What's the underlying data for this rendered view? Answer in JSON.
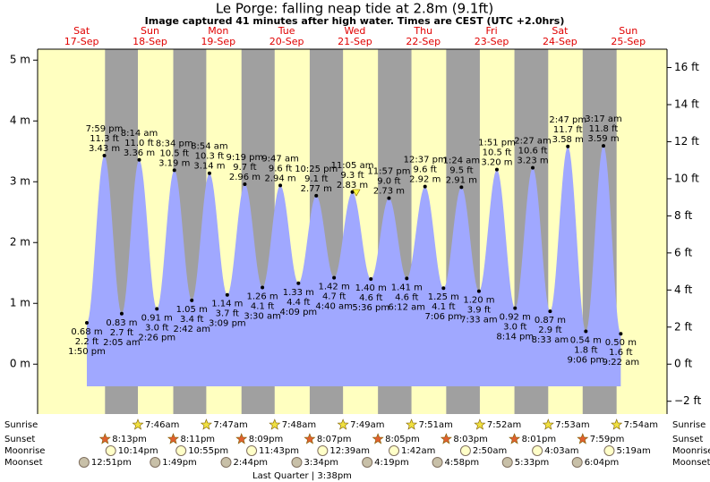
{
  "header": {
    "title": "Le Porge: falling  neap tide at 2.8m (9.1ft)",
    "subtitle": "Image captured 41 minutes after high water. Times are CEST (UTC +2.0hrs)"
  },
  "chart_data": {
    "type": "tide",
    "ylim": [
      -0.82,
      5.18
    ],
    "yticks": [
      {
        "value": 0,
        "label": "0 m"
      },
      {
        "value": 1,
        "label": "1 m"
      },
      {
        "value": 2,
        "label": "2 m"
      },
      {
        "value": 3,
        "label": "3 m"
      },
      {
        "value": 4,
        "label": "4 m"
      },
      {
        "value": 5,
        "label": "5 m"
      }
    ],
    "y2lim": [
      -2.69,
      16.99
    ],
    "y2ticks": [
      {
        "value": -2,
        "label": "−2 ft"
      },
      {
        "value": 0,
        "label": "0 ft"
      },
      {
        "value": 2,
        "label": "2 ft"
      },
      {
        "value": 4,
        "label": "4 ft"
      },
      {
        "value": 6,
        "label": "6 ft"
      },
      {
        "value": 8,
        "label": "8 ft"
      },
      {
        "value": 10,
        "label": "10 ft"
      },
      {
        "value": 12,
        "label": "12 ft"
      },
      {
        "value": 14,
        "label": "14 ft"
      },
      {
        "value": 16,
        "label": "16 ft"
      }
    ],
    "colors": {
      "day": "#ffffc0",
      "night": "#a0a0a0",
      "water": "#a0a8ff",
      "date": "#e00000"
    },
    "row_labels": {
      "sunrise": "Sunrise",
      "sunset": "Sunset",
      "moonrise": "Moonrise",
      "moonset": "Moonset"
    },
    "moon_phase": "Last Quarter | 3:38pm",
    "days": [
      {
        "weekday": "Sat",
        "date": "17-Sep",
        "sunrise": null,
        "sunset": "8:13pm",
        "moonrise": "10:14pm",
        "moonset": "12:51pm",
        "tides": [
          {
            "time": "1:50 pm",
            "value": 0.68,
            "value_label": "0.68 m",
            "ft": "2.2 ft"
          },
          {
            "time": "7:59 pm",
            "value": 3.43,
            "value_label": "3.43 m",
            "ft": "11.3 ft"
          }
        ]
      },
      {
        "weekday": "Sun",
        "date": "18-Sep",
        "sunrise": "7:46am",
        "sunset": "8:11pm",
        "moonrise": "10:55pm",
        "moonset": "1:49pm",
        "tides": [
          {
            "time": "2:05 am",
            "value": 0.83,
            "value_label": "0.83 m",
            "ft": "2.7 ft"
          },
          {
            "time": "8:14 am",
            "value": 3.36,
            "value_label": "3.36 m",
            "ft": "11.0 ft"
          },
          {
            "time": "2:26 pm",
            "value": 0.91,
            "value_label": "0.91 m",
            "ft": "3.0 ft"
          },
          {
            "time": "8:34 pm",
            "value": 3.19,
            "value_label": "3.19 m",
            "ft": "10.5 ft"
          }
        ]
      },
      {
        "weekday": "Mon",
        "date": "19-Sep",
        "sunrise": "7:47am",
        "sunset": "8:09pm",
        "moonrise": "11:43pm",
        "moonset": "2:44pm",
        "tides": [
          {
            "time": "2:42 am",
            "value": 1.05,
            "value_label": "1.05 m",
            "ft": "3.4 ft"
          },
          {
            "time": "8:54 am",
            "value": 3.14,
            "value_label": "3.14 m",
            "ft": "10.3 ft"
          },
          {
            "time": "3:09 pm",
            "value": 1.14,
            "value_label": "1.14 m",
            "ft": "3.7 ft"
          },
          {
            "time": "9:19 pm",
            "value": 2.96,
            "value_label": "2.96 m",
            "ft": "9.7 ft"
          }
        ]
      },
      {
        "weekday": "Tue",
        "date": "20-Sep",
        "sunrise": "7:48am",
        "sunset": "8:07pm",
        "moonrise": null,
        "moonset": "3:34pm",
        "tides": [
          {
            "time": "3:30 am",
            "value": 1.26,
            "value_label": "1.26 m",
            "ft": "4.1 ft"
          },
          {
            "time": "9:47 am",
            "value": 2.94,
            "value_label": "2.94 m",
            "ft": "9.6 ft"
          },
          {
            "time": "4:09 pm",
            "value": 1.33,
            "value_label": "1.33 m",
            "ft": "4.4 ft"
          },
          {
            "time": "10:25 pm",
            "value": 2.77,
            "value_label": "2.77 m",
            "ft": "9.1 ft"
          }
        ]
      },
      {
        "weekday": "Wed",
        "date": "21-Sep",
        "sunrise": "7:49am",
        "sunset": "8:05pm",
        "moonrise": "12:39am",
        "moonset": "4:19pm",
        "tides": [
          {
            "time": "4:40 am",
            "value": 1.42,
            "value_label": "1.42 m",
            "ft": "4.7 ft"
          },
          {
            "time": "11:05 am",
            "value": 2.83,
            "value_label": "2.83 m",
            "ft": "9.3 ft"
          },
          {
            "time": "5:36 pm",
            "value": 1.4,
            "value_label": "1.40 m",
            "ft": "4.6 ft"
          },
          {
            "time": "11:57 pm",
            "value": 2.73,
            "value_label": "2.73 m",
            "ft": "9.0 ft"
          }
        ]
      },
      {
        "weekday": "Thu",
        "date": "22-Sep",
        "sunrise": "7:51am",
        "sunset": "8:03pm",
        "moonrise": "1:42am",
        "moonset": "4:58pm",
        "tides": [
          {
            "time": "6:12 am",
            "value": 1.41,
            "value_label": "1.41 m",
            "ft": "4.6 ft"
          },
          {
            "time": "12:37 pm",
            "value": 2.92,
            "value_label": "2.92 m",
            "ft": "9.6 ft"
          },
          {
            "time": "7:06 pm",
            "value": 1.25,
            "value_label": "1.25 m",
            "ft": "4.1 ft"
          }
        ]
      },
      {
        "weekday": "Fri",
        "date": "23-Sep",
        "sunrise": "7:52am",
        "sunset": "8:01pm",
        "moonrise": "2:50am",
        "moonset": "5:33pm",
        "tides": [
          {
            "time": "1:24 am",
            "value": 2.91,
            "value_label": "2.91 m",
            "ft": "9.5 ft"
          },
          {
            "time": "7:33 am",
            "value": 1.2,
            "value_label": "1.20 m",
            "ft": "3.9 ft"
          },
          {
            "time": "1:51 pm",
            "value": 3.2,
            "value_label": "3.20 m",
            "ft": "10.5 ft"
          },
          {
            "time": "8:14 pm",
            "value": 0.92,
            "value_label": "0.92 m",
            "ft": "3.0 ft"
          }
        ]
      },
      {
        "weekday": "Sat",
        "date": "24-Sep",
        "sunrise": "7:53am",
        "sunset": "7:59pm",
        "moonrise": "4:03am",
        "moonset": "6:04pm",
        "tides": [
          {
            "time": "2:27 am",
            "value": 3.23,
            "value_label": "3.23 m",
            "ft": "10.6 ft"
          },
          {
            "time": "8:33 am",
            "value": 0.87,
            "value_label": "0.87 m",
            "ft": "2.9 ft"
          },
          {
            "time": "2:47 pm",
            "value": 3.58,
            "value_label": "3.58 m",
            "ft": "11.7 ft"
          },
          {
            "time": "9:06 pm",
            "value": 0.54,
            "value_label": "0.54 m",
            "ft": "1.8 ft"
          }
        ]
      },
      {
        "weekday": "Sun",
        "date": "25-Sep",
        "sunrise": "7:54am",
        "sunset": null,
        "moonrise": "5:19am",
        "moonset": null,
        "tides": [
          {
            "time": "3:17 am",
            "value": 3.59,
            "value_label": "3.59 m",
            "ft": "11.8 ft"
          },
          {
            "time": "9:22 am",
            "value": 0.5,
            "value_label": "0.50 m",
            "ft": "1.6 ft"
          }
        ]
      }
    ]
  }
}
